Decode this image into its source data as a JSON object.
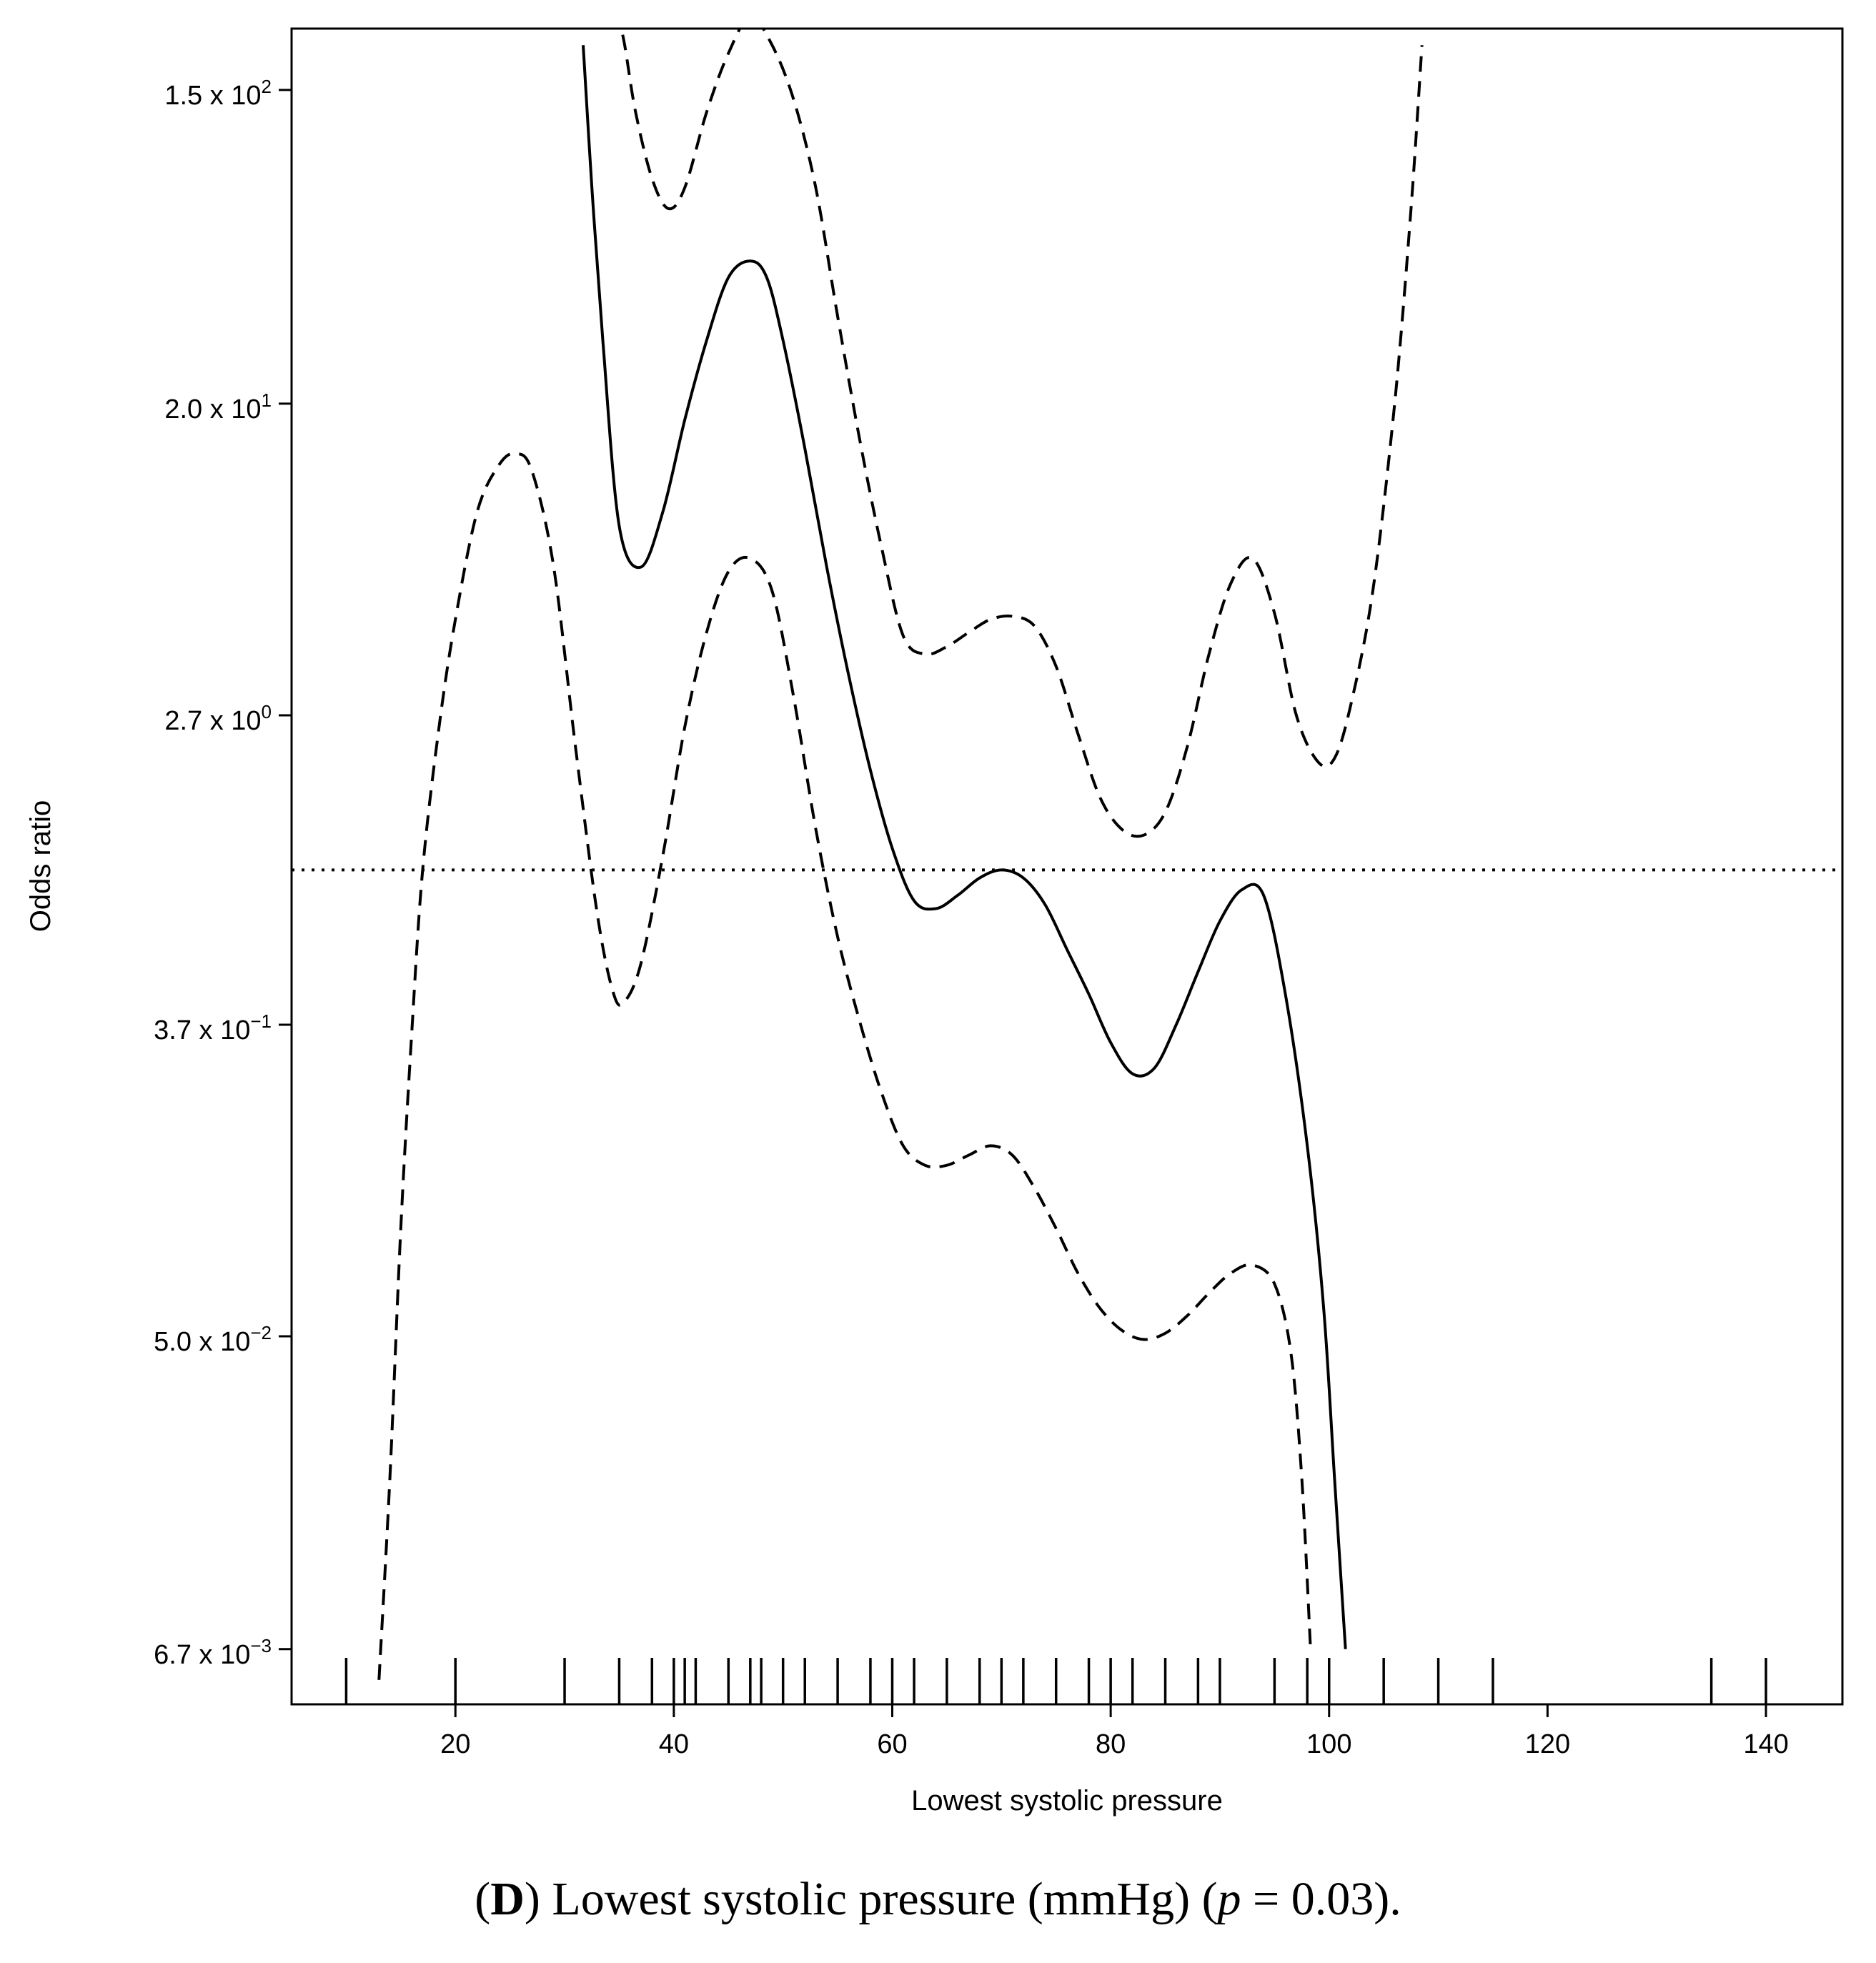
{
  "chart_data": {
    "type": "line",
    "xlabel": "Lowest systolic pressure",
    "ylabel": "Odds ratio",
    "xlim": [
      5,
      147
    ],
    "x_ticks": [
      20,
      40,
      60,
      80,
      100,
      120,
      140
    ],
    "y_scale": "log",
    "ylim_log": [
      -5.36,
      5.405
    ],
    "y_ticks": [
      {
        "mantissa": "6.7",
        "exponent": "−3",
        "value": 0.0067
      },
      {
        "mantissa": "5.0",
        "exponent": "−2",
        "value": 0.05
      },
      {
        "mantissa": "3.7",
        "exponent": "−1",
        "value": 0.37
      },
      {
        "mantissa": "2.7",
        "exponent": "0",
        "value": 2.7
      },
      {
        "mantissa": "2.0",
        "exponent": "1",
        "value": 20
      },
      {
        "mantissa": "1.5",
        "exponent": "2",
        "value": 150
      }
    ],
    "reference_line": {
      "value": 1,
      "style": "dotted"
    },
    "grid": false,
    "series": [
      {
        "role": "estimate",
        "style": "solid",
        "points": [
          [
            31.7,
            200
          ],
          [
            32.5,
            80
          ],
          [
            33.5,
            30
          ],
          [
            35,
            9.1
          ],
          [
            37,
            7.0
          ],
          [
            39,
            10
          ],
          [
            41,
            18
          ],
          [
            43,
            30
          ],
          [
            45,
            45
          ],
          [
            47,
            50
          ],
          [
            48.5,
            45
          ],
          [
            50,
            30
          ],
          [
            52,
            15
          ],
          [
            54,
            7
          ],
          [
            56,
            3.5
          ],
          [
            58,
            1.9
          ],
          [
            60,
            1.15
          ],
          [
            62,
            0.82
          ],
          [
            64,
            0.78
          ],
          [
            66,
            0.85
          ],
          [
            68,
            0.95
          ],
          [
            70,
            1.0
          ],
          [
            72,
            0.95
          ],
          [
            74,
            0.8
          ],
          [
            76,
            0.6
          ],
          [
            78,
            0.45
          ],
          [
            80,
            0.33
          ],
          [
            82,
            0.27
          ],
          [
            84,
            0.28
          ],
          [
            86,
            0.37
          ],
          [
            88,
            0.52
          ],
          [
            90,
            0.72
          ],
          [
            92,
            0.88
          ],
          [
            94,
            0.85
          ],
          [
            96,
            0.45
          ],
          [
            98,
            0.17
          ],
          [
            99.5,
            0.06
          ],
          [
            100.5,
            0.02
          ],
          [
            101.5,
            0.0067
          ]
        ]
      },
      {
        "role": "upper_ci",
        "style": "dashed",
        "points": [
          [
            34.8,
            250
          ],
          [
            35.5,
            200
          ],
          [
            36.5,
            130
          ],
          [
            38,
            85
          ],
          [
            39.5,
            70
          ],
          [
            41,
            80
          ],
          [
            43,
            130
          ],
          [
            45,
            190
          ],
          [
            47,
            240
          ],
          [
            49,
            200
          ],
          [
            51,
            140
          ],
          [
            53,
            80
          ],
          [
            55,
            35
          ],
          [
            57,
            16
          ],
          [
            59,
            8
          ],
          [
            61,
            4.5
          ],
          [
            63,
            4.0
          ],
          [
            65,
            4.2
          ],
          [
            67,
            4.6
          ],
          [
            69,
            5.0
          ],
          [
            71,
            5.1
          ],
          [
            73,
            4.8
          ],
          [
            75,
            3.7
          ],
          [
            77,
            2.4
          ],
          [
            79,
            1.6
          ],
          [
            81,
            1.3
          ],
          [
            83,
            1.25
          ],
          [
            85,
            1.45
          ],
          [
            87,
            2.2
          ],
          [
            89,
            4.0
          ],
          [
            91,
            6.3
          ],
          [
            93,
            7.4
          ],
          [
            95,
            5.2
          ],
          [
            97,
            2.7
          ],
          [
            99,
            2.0
          ],
          [
            100.5,
            2.05
          ],
          [
            102,
            2.9
          ],
          [
            104,
            6
          ],
          [
            106,
            20
          ],
          [
            107.5,
            70
          ],
          [
            108.5,
            200
          ]
        ]
      },
      {
        "role": "lower_ci",
        "style": "dashed",
        "points": [
          [
            13,
            0.0055
          ],
          [
            14,
            0.02
          ],
          [
            15,
            0.1
          ],
          [
            16,
            0.35
          ],
          [
            17,
            1.0
          ],
          [
            18.5,
            2.5
          ],
          [
            20,
            5
          ],
          [
            22,
            10
          ],
          [
            24,
            13.5
          ],
          [
            25.5,
            14.5
          ],
          [
            27,
            13
          ],
          [
            29,
            7
          ],
          [
            31,
            2.2
          ],
          [
            33,
            0.75
          ],
          [
            34.5,
            0.45
          ],
          [
            35.5,
            0.43
          ],
          [
            37,
            0.55
          ],
          [
            39,
            1.1
          ],
          [
            41,
            2.5
          ],
          [
            43,
            4.6
          ],
          [
            45,
            6.8
          ],
          [
            47,
            7.4
          ],
          [
            49,
            6
          ],
          [
            51,
            3
          ],
          [
            53,
            1.3
          ],
          [
            55,
            0.65
          ],
          [
            57,
            0.38
          ],
          [
            59,
            0.24
          ],
          [
            61,
            0.17
          ],
          [
            63,
            0.15
          ],
          [
            65,
            0.15
          ],
          [
            67,
            0.16
          ],
          [
            69,
            0.17
          ],
          [
            71,
            0.16
          ],
          [
            73,
            0.13
          ],
          [
            75,
            0.1
          ],
          [
            77,
            0.075
          ],
          [
            79,
            0.06
          ],
          [
            81,
            0.052
          ],
          [
            83,
            0.049
          ],
          [
            85,
            0.051
          ],
          [
            87,
            0.057
          ],
          [
            89,
            0.066
          ],
          [
            91,
            0.075
          ],
          [
            93,
            0.079
          ],
          [
            95,
            0.07
          ],
          [
            96.5,
            0.045
          ],
          [
            97.5,
            0.02
          ],
          [
            98.3,
            0.0067
          ]
        ]
      }
    ],
    "rug": [
      10,
      20,
      30,
      35,
      38,
      40,
      41,
      42,
      45,
      47,
      48,
      50,
      52,
      55,
      58,
      60,
      62,
      65,
      68,
      70,
      72,
      75,
      78,
      80,
      82,
      85,
      88,
      90,
      95,
      98,
      100,
      105,
      110,
      115,
      135,
      140
    ]
  },
  "caption": {
    "letter": "D",
    "text": " Lowest systolic pressure (mmHg) (",
    "p_symbol": "p",
    "p_value": " = 0.03)."
  }
}
